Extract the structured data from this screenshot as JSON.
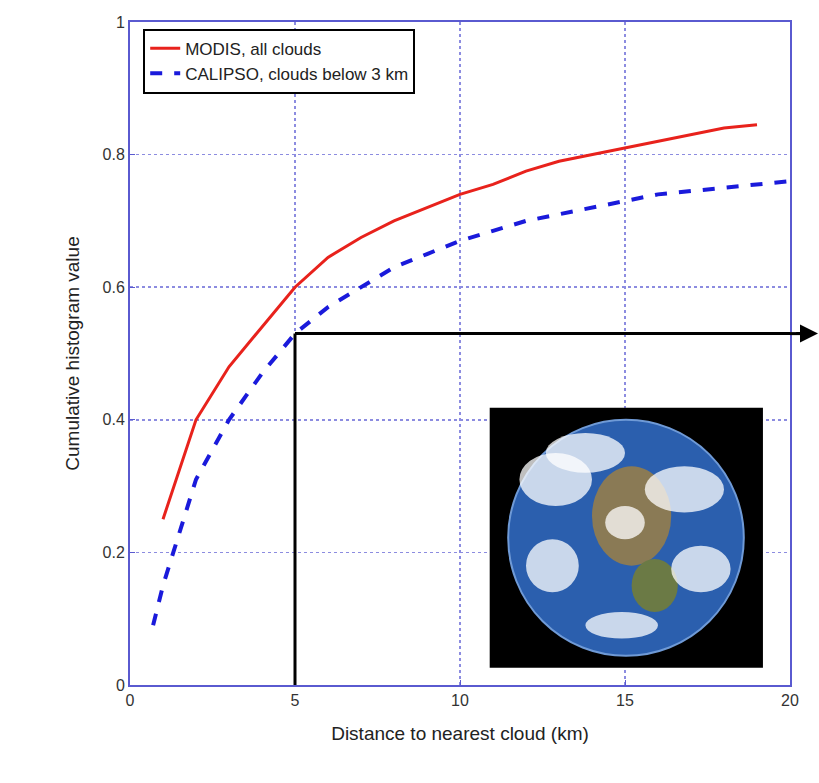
{
  "chart_data": {
    "type": "line",
    "x_label": "Distance to nearest cloud (km)",
    "y_label": "Cumulative histogram value",
    "xlim": [
      0,
      20
    ],
    "xticks": [
      0,
      5,
      10,
      15,
      20
    ],
    "ylim": [
      0,
      1
    ],
    "yticks": [
      0,
      0.2,
      0.4,
      0.6,
      0.8,
      1
    ],
    "grid": true,
    "legend": "top-left",
    "series": [
      {
        "name": "MODIS, all clouds",
        "color": "#e8221c",
        "line_style": "solid",
        "x": [
          1,
          2,
          3,
          4,
          5,
          6,
          7,
          8,
          9,
          10,
          11,
          12,
          13,
          14,
          15,
          16,
          17,
          18,
          19
        ],
        "values": [
          0.25,
          0.4,
          0.48,
          0.54,
          0.6,
          0.645,
          0.675,
          0.7,
          0.72,
          0.74,
          0.755,
          0.775,
          0.79,
          0.8,
          0.81,
          0.82,
          0.83,
          0.84,
          0.845
        ]
      },
      {
        "name": "CALIPSO, clouds below 3 km",
        "color": "#1a1adb",
        "line_style": "dashed",
        "x": [
          0.7,
          1,
          2,
          3,
          4,
          5,
          6,
          7,
          8,
          9,
          10,
          11,
          12,
          13,
          14,
          15,
          16,
          17,
          18,
          19,
          20
        ],
        "values": [
          0.09,
          0.15,
          0.31,
          0.4,
          0.47,
          0.53,
          0.57,
          0.6,
          0.63,
          0.65,
          0.67,
          0.685,
          0.7,
          0.71,
          0.72,
          0.73,
          0.74,
          0.745,
          0.75,
          0.755,
          0.76
        ]
      }
    ]
  }
}
